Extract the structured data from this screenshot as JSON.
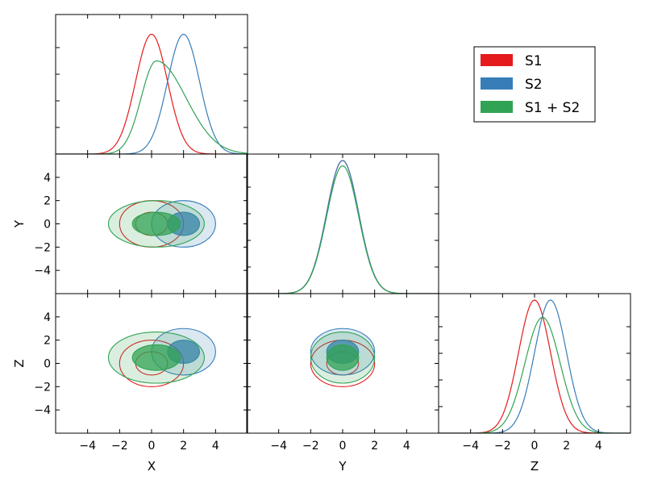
{
  "chart_data": {
    "type": "corner",
    "variables": [
      "X",
      "Y",
      "Z"
    ],
    "ticks": [
      -4,
      -2,
      0,
      2,
      4
    ],
    "range": [
      -6,
      6
    ],
    "legend_position": "top-right",
    "series": [
      {
        "name": "S1",
        "color": "#e41a1c",
        "mean": {
          "X": 0,
          "Y": 0,
          "Z": 0
        },
        "sd": {
          "X": 1,
          "Y": 1,
          "Z": 1
        },
        "peak": {
          "X": 0.9,
          "Y": 1.0,
          "Z": 1.0
        },
        "filled": false,
        "contour_sigma": [
          1.0,
          2.0
        ]
      },
      {
        "name": "S2",
        "color": "#377eb8",
        "mean": {
          "X": 2,
          "Y": 0,
          "Z": 1
        },
        "sd": {
          "X": 1,
          "Y": 1,
          "Z": 1
        },
        "peak": {
          "X": 0.9,
          "Y": 1.0,
          "Z": 1.0
        },
        "filled": true,
        "contour_sigma": [
          1.0,
          2.0
        ]
      },
      {
        "name": "S1 + S2",
        "color": "#31a354",
        "mean": {
          "X": 0.3,
          "Y": 0,
          "Z": 0.5
        },
        "sd": {
          "X": 1.5,
          "Y": 1,
          "Z": 1.1
        },
        "peak": {
          "X": 0.7,
          "Y": 0.96,
          "Z": 0.87
        },
        "skewed_1d": {
          "X": true
        },
        "filled": true,
        "contour_sigma": [
          1.0,
          2.0
        ]
      }
    ]
  }
}
